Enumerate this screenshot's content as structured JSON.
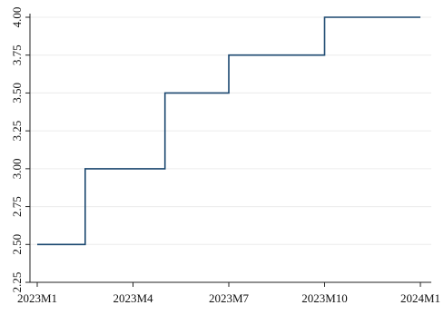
{
  "chart_data": {
    "type": "line",
    "step": true,
    "title": "",
    "xlabel": "",
    "ylabel": "",
    "x_ticks": [
      "2023M1",
      "2023M4",
      "2023M7",
      "2023M10",
      "2024M1"
    ],
    "y_ticks": [
      "2.25",
      "2.50",
      "2.75",
      "3.00",
      "3.25",
      "3.50",
      "3.75",
      "4.00"
    ],
    "ylim": [
      2.25,
      4.0
    ],
    "xlim": [
      "2023M1",
      "2024M1"
    ],
    "grid": true,
    "series": [
      {
        "color": "#1a476f",
        "points": [
          {
            "x": "2023M1",
            "y": 2.5
          },
          {
            "x": "2023M2.5",
            "y": 2.5
          },
          {
            "x": "2023M2.5",
            "y": 3.0
          },
          {
            "x": "2023M5",
            "y": 3.0
          },
          {
            "x": "2023M5",
            "y": 3.5
          },
          {
            "x": "2023M7",
            "y": 3.5
          },
          {
            "x": "2023M7",
            "y": 3.75
          },
          {
            "x": "2023M10",
            "y": 3.75
          },
          {
            "x": "2023M10",
            "y": 4.0
          },
          {
            "x": "2024M1",
            "y": 4.0
          }
        ]
      }
    ]
  }
}
